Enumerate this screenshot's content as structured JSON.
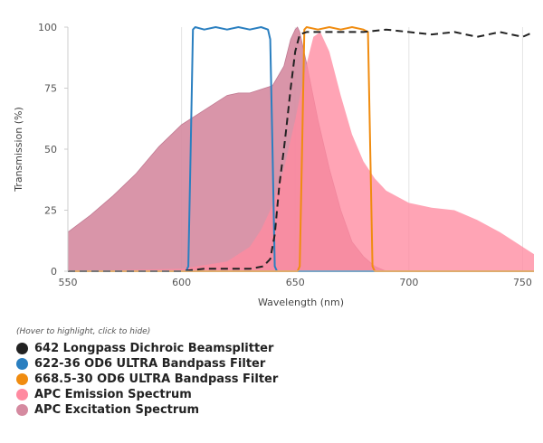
{
  "chart_data": {
    "type": "area",
    "title": "",
    "xlabel": "Wavelength (nm)",
    "ylabel": "Transmission (%)",
    "xlim": [
      550,
      755
    ],
    "ylim": [
      0,
      100
    ],
    "xticks": [
      "550",
      "600",
      "650",
      "700",
      "750"
    ],
    "yticks": [
      "0",
      "25",
      "50",
      "75",
      "100"
    ],
    "grid": "vertical",
    "legend_placement": "bottom-left",
    "legend_hint": "(Hover to highlight, click to hide)",
    "series": [
      {
        "name": "642 Longpass Dichroic Beamsplitter",
        "color": "#222222",
        "style": "dashed-line",
        "x": [
          550,
          590,
          600,
          610,
          620,
          630,
          636,
          639,
          641,
          643,
          645,
          646,
          648,
          650,
          652,
          655,
          660,
          670,
          680,
          690,
          700,
          710,
          720,
          730,
          740,
          750,
          755
        ],
        "y": [
          0,
          0,
          0,
          1,
          1,
          1,
          2,
          5,
          15,
          35,
          50,
          58,
          75,
          90,
          97,
          98,
          98,
          98,
          98,
          99,
          98,
          97,
          98,
          96,
          98,
          96,
          98
        ]
      },
      {
        "name": "622-36 OD6 ULTRA Bandpass Filter",
        "color": "#2a7fc0",
        "style": "line",
        "x": [
          550,
          602,
          603,
          604,
          605,
          606,
          610,
          615,
          620,
          625,
          630,
          635,
          638,
          639,
          640,
          641,
          642,
          755
        ],
        "y": [
          0,
          0,
          2,
          50,
          99,
          100,
          99,
          100,
          99,
          100,
          99,
          100,
          99,
          95,
          50,
          2,
          0,
          0
        ]
      },
      {
        "name": "668.5-30 OD6 ULTRA Bandpass Filter",
        "color": "#f08c10",
        "style": "line",
        "x": [
          550,
          651,
          652,
          653,
          654,
          655,
          660,
          665,
          670,
          675,
          680,
          682,
          683,
          684,
          685,
          755
        ],
        "y": [
          0,
          0,
          2,
          50,
          99,
          100,
          99,
          100,
          99,
          100,
          99,
          98,
          50,
          2,
          0,
          0
        ]
      },
      {
        "name": "APC Emission Spectrum",
        "color": "#ff8aa0",
        "style": "area",
        "x": [
          550,
          600,
          620,
          630,
          635,
          640,
          645,
          650,
          655,
          658,
          661,
          665,
          670,
          675,
          680,
          685,
          690,
          700,
          710,
          720,
          730,
          740,
          745,
          750,
          755
        ],
        "y": [
          0,
          1,
          4,
          10,
          17,
          27,
          42,
          62,
          85,
          96,
          98,
          90,
          72,
          56,
          45,
          38,
          33,
          28,
          26,
          25,
          21,
          16,
          13,
          10,
          7
        ]
      },
      {
        "name": "APC Excitation Spectrum",
        "color": "#d58aa0",
        "style": "area",
        "x": [
          550,
          560,
          570,
          580,
          590,
          600,
          610,
          620,
          625,
          630,
          640,
          645,
          648,
          650,
          651,
          652,
          655,
          660,
          665,
          670,
          675,
          680,
          685,
          690
        ],
        "y": [
          16,
          23,
          31,
          40,
          51,
          60,
          66,
          72,
          73,
          73,
          76,
          84,
          95,
          99,
          100,
          98,
          85,
          62,
          42,
          25,
          12,
          6,
          2,
          0
        ]
      }
    ]
  }
}
